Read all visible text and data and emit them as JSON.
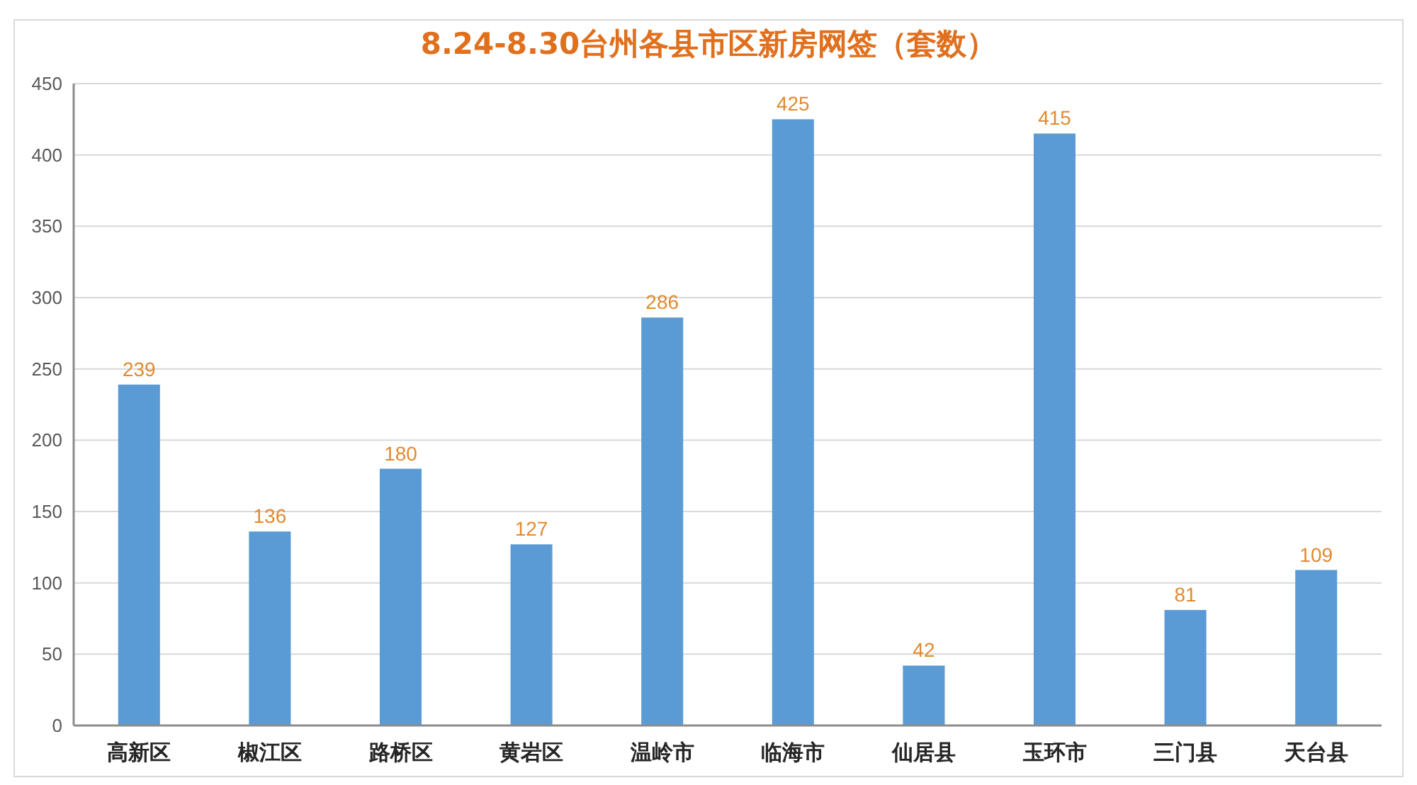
{
  "chart_data": {
    "type": "bar",
    "title": "8.24-8.30台州各县市区新房网签（套数）",
    "categories": [
      "高新区",
      "椒江区",
      "路桥区",
      "黄岩区",
      "温岭市",
      "临海市",
      "仙居县",
      "玉环市",
      "三门县",
      "天台县"
    ],
    "values": [
      239,
      136,
      180,
      127,
      286,
      425,
      42,
      415,
      81,
      109
    ],
    "color": "#5b9bd5",
    "ylim": [
      0,
      450
    ],
    "yticks": [
      0,
      50,
      100,
      150,
      200,
      250,
      300,
      350,
      400,
      450
    ],
    "grid": "y",
    "data_labels": true
  }
}
